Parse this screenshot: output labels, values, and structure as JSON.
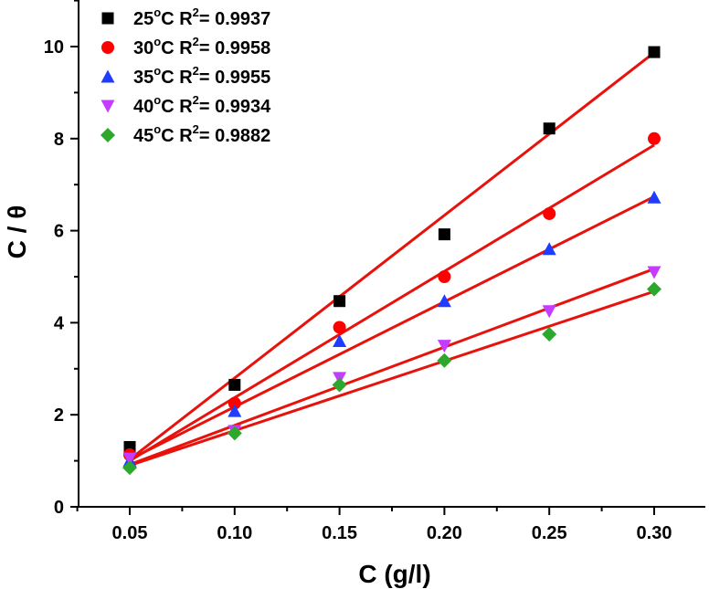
{
  "chart_data": {
    "type": "scatter",
    "title": "",
    "xlabel": "C (g/l)",
    "ylabel": "C / θ",
    "xlim": [
      0.025,
      0.33
    ],
    "ylim": [
      0,
      11
    ],
    "x_ticks": [
      0.05,
      0.1,
      0.15,
      0.2,
      0.25,
      0.3
    ],
    "x_tick_labels": [
      "0.05",
      "0.10",
      "0.15",
      "0.20",
      "0.25",
      "0.30"
    ],
    "y_ticks": [
      0,
      2,
      4,
      6,
      8,
      10
    ],
    "y_tick_labels": [
      "0",
      "2",
      "4",
      "6",
      "8",
      "10"
    ],
    "grid": false,
    "legend_position": "top-left",
    "fit_line_color": "#e8120c",
    "x": [
      0.05,
      0.1,
      0.15,
      0.2,
      0.25,
      0.3
    ],
    "series": [
      {
        "name": "25",
        "legend_temp": "25",
        "legend_sup_o": "o",
        "legend_c": "C R",
        "legend_sup_2": "2",
        "legend_r2": "= 0.9937",
        "marker": "square",
        "color": "#000000",
        "values": [
          1.3,
          2.65,
          4.47,
          5.92,
          8.22,
          9.88
        ],
        "fit": [
          1.03,
          9.87
        ]
      },
      {
        "name": "30",
        "legend_temp": "30",
        "legend_sup_o": "o",
        "legend_c": "C R",
        "legend_sup_2": "2",
        "legend_r2": "= 0.9958",
        "marker": "circle",
        "color": "#ff0000",
        "values": [
          1.13,
          2.25,
          3.9,
          5.0,
          6.37,
          8.0
        ],
        "fit": [
          1.0,
          7.86
        ]
      },
      {
        "name": "35",
        "legend_temp": "35",
        "legend_sup_o": "o",
        "legend_c": "C R",
        "legend_sup_2": "2",
        "legend_r2": "= 0.9955",
        "marker": "triangle-up",
        "color": "#1f3cff",
        "values": [
          1.0,
          2.08,
          3.6,
          4.47,
          5.6,
          6.72
        ],
        "fit": [
          1.03,
          6.74
        ]
      },
      {
        "name": "40",
        "legend_temp": "40",
        "legend_sup_o": "o",
        "legend_c": "C R",
        "legend_sup_2": "2",
        "legend_r2": "= 0.9934",
        "marker": "triangle-down",
        "color": "#c43cff",
        "values": [
          1.05,
          1.65,
          2.8,
          3.5,
          4.25,
          5.1
        ],
        "fit": [
          0.92,
          5.17
        ]
      },
      {
        "name": "45",
        "legend_temp": "45",
        "legend_sup_o": "o",
        "legend_c": "C R",
        "legend_sup_2": "2",
        "legend_r2": "= 0.9882",
        "marker": "diamond",
        "color": "#2ca82c",
        "values": [
          0.85,
          1.6,
          2.65,
          3.18,
          3.75,
          4.73
        ],
        "fit": [
          0.9,
          4.68
        ]
      }
    ]
  }
}
